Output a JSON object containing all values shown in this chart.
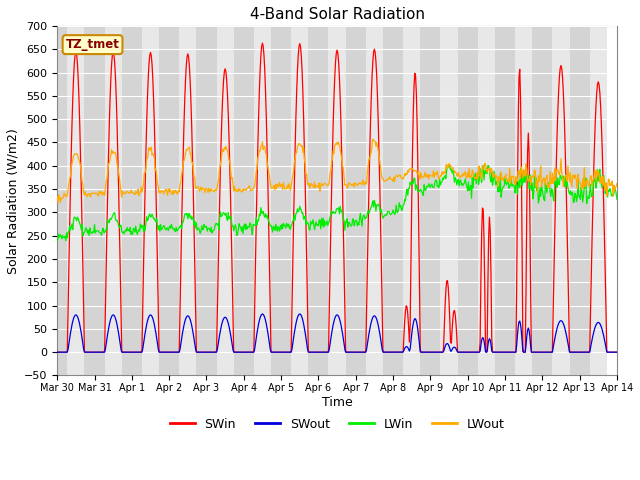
{
  "title": "4-Band Solar Radiation",
  "xlabel": "Time",
  "ylabel": "Solar Radiation (W/m2)",
  "ylim": [
    -50,
    700
  ],
  "yticks": [
    -50,
    0,
    50,
    100,
    150,
    200,
    250,
    300,
    350,
    400,
    450,
    500,
    550,
    600,
    650,
    700
  ],
  "legend_label": "TZ_tmet",
  "colors": {
    "SWin": "#ff0000",
    "SWout": "#0000dd",
    "LWin": "#00ee00",
    "LWout": "#ffaa00"
  },
  "background_color": "#ffffff",
  "band_colors": [
    "#e8e8e8",
    "#d4d4d4"
  ],
  "grid_color": "#ffffff",
  "tick_labels": [
    "Mar 30",
    "Mar 31",
    "Apr 1",
    "Apr 2",
    "Apr 3",
    "Apr 4",
    "Apr 5",
    "Apr 6",
    "Apr 7",
    "Apr 8",
    "Apr 9",
    "Apr 10",
    "Apr 11",
    "Apr 12",
    "Apr 13",
    "Apr 14"
  ]
}
